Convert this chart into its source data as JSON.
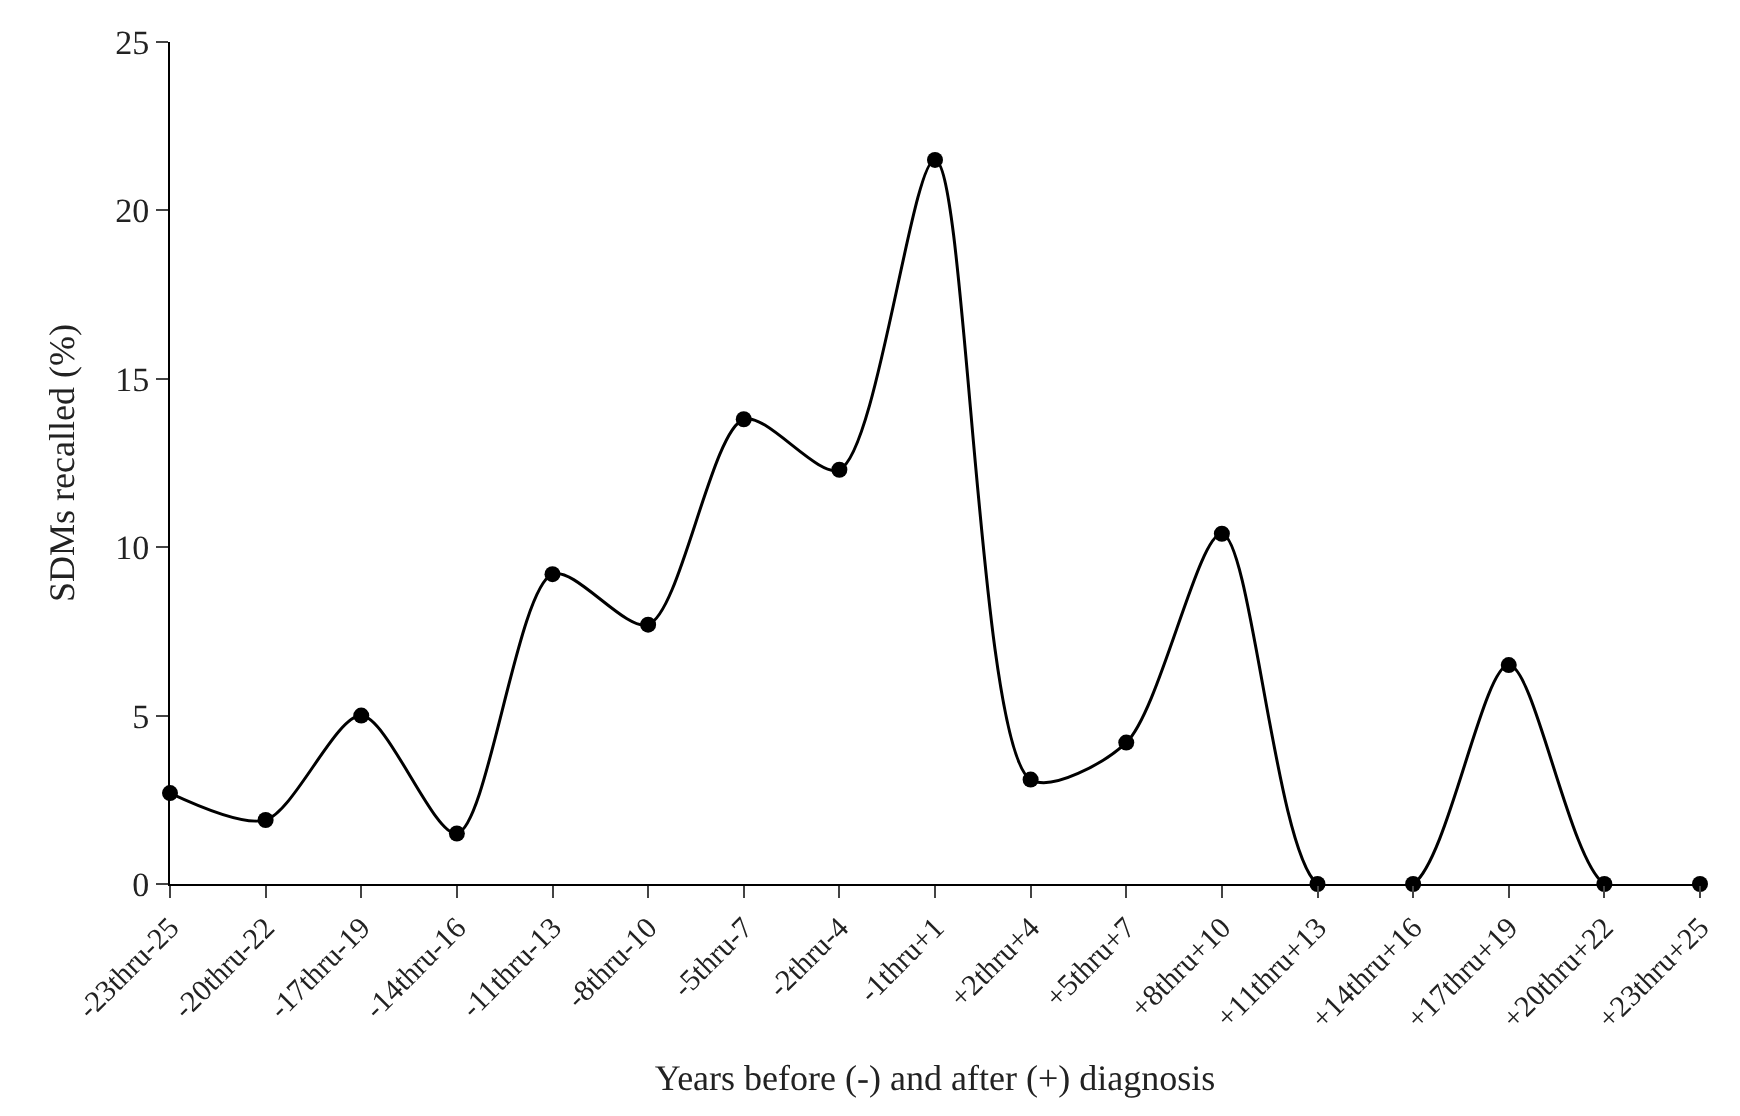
{
  "chart_data": {
    "type": "line",
    "xlabel": "Years before (-) and after (+) diagnosis",
    "ylabel": "SDMs recalled (%)",
    "categories": [
      "-23thru-25",
      "-20thru-22",
      "-17thru-19",
      "-14thru-16",
      "-11thru-13",
      "-8thru-10",
      "-5thru-7",
      "-2thru-4",
      "-1thru+1",
      "+2thru+4",
      "+5thru+7",
      "+8thru+10",
      "+11thru+13",
      "+14thru+16",
      "+17thru+19",
      "+20thru+22",
      "+23thru+25"
    ],
    "series": [
      {
        "color": "#000000",
        "values": [
          2.7,
          1.9,
          5.0,
          1.5,
          9.2,
          7.7,
          13.8,
          12.3,
          21.5,
          3.1,
          4.2,
          10.4,
          0,
          0,
          6.5,
          0,
          0
        ]
      }
    ],
    "ylim": [
      0,
      25
    ],
    "yticks": [
      0,
      5,
      10,
      15,
      20,
      25
    ],
    "legend": false,
    "marker": "circle",
    "line_style": "solid"
  }
}
